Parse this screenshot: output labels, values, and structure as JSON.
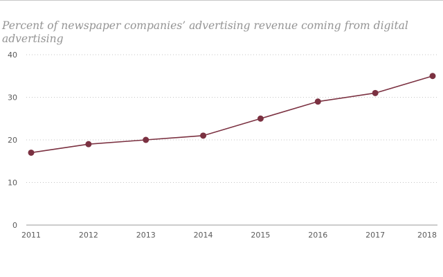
{
  "chart_data": {
    "type": "line",
    "title": "",
    "subtitle": "Percent of newspaper companies’ advertising revenue coming from digital advertising",
    "xlabel": "",
    "ylabel": "",
    "x": [
      "2011",
      "2012",
      "2013",
      "2014",
      "2015",
      "2016",
      "2017",
      "2018"
    ],
    "series": [
      {
        "values": [
          17,
          19,
          20,
          21,
          25,
          29,
          31,
          35
        ],
        "color": "#7b3141"
      }
    ],
    "ylim": [
      0,
      40
    ],
    "yticks": [
      "0",
      "10",
      "20",
      "30",
      "40"
    ],
    "grid": "horizontal dotted",
    "legend": "none"
  }
}
